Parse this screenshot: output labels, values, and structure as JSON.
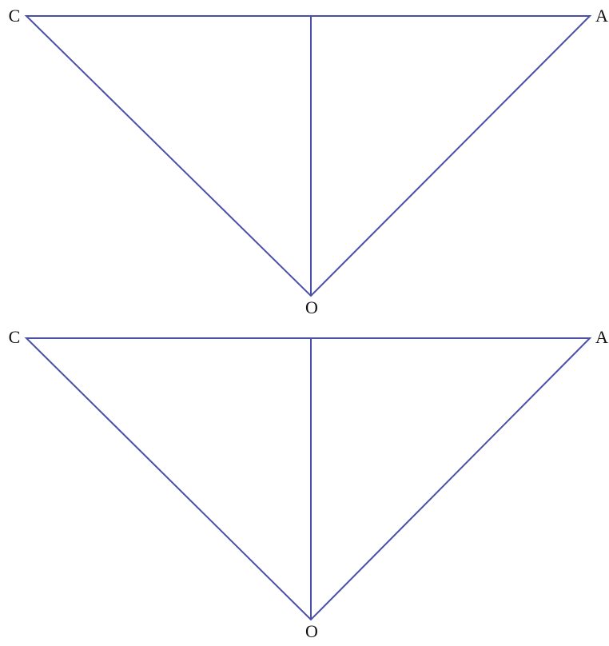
{
  "panels": [
    {
      "labels": {
        "left": "C",
        "right": "A",
        "bottom": "O"
      }
    },
    {
      "labels": {
        "left": "C",
        "right": "A",
        "bottom": "O"
      }
    }
  ]
}
